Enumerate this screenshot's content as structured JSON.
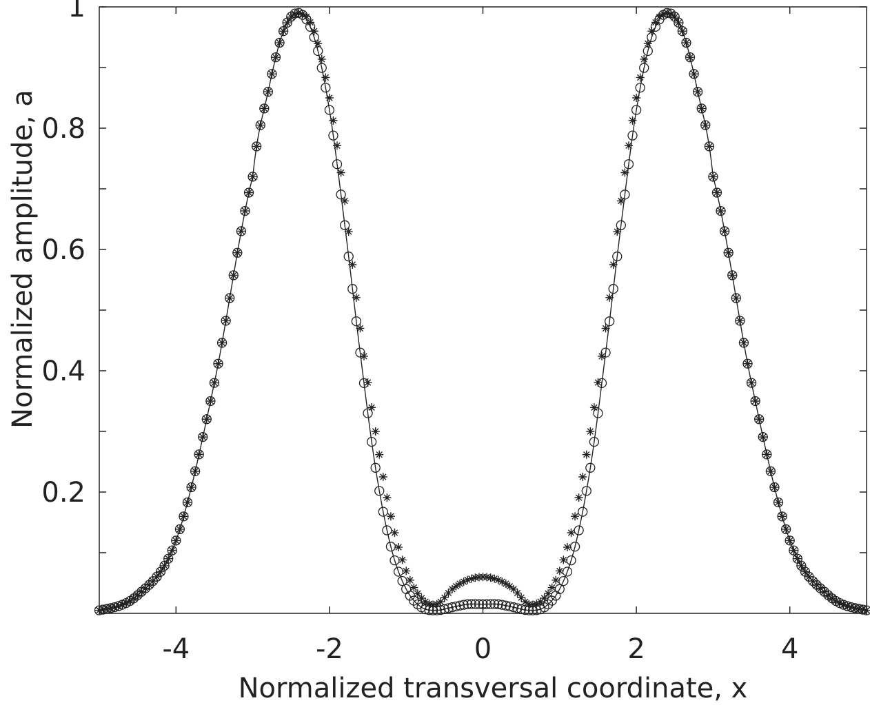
{
  "chart_data": {
    "type": "line",
    "xlabel": "Normalized transversal coordinate,  x",
    "ylabel": "Normalized amplitude,  a",
    "xlim": [
      -5,
      5
    ],
    "ylim": [
      0,
      1
    ],
    "xticks": [
      -4,
      -2,
      0,
      2,
      4
    ],
    "yticks_major": [
      0.2,
      0.4,
      0.6,
      0.8,
      1
    ],
    "yticks_minor": [
      0.1,
      0.3,
      0.5,
      0.7,
      0.9
    ],
    "xtick_labels": [
      "-4",
      "-2",
      "0",
      "2",
      "4"
    ],
    "ytick_labels": [
      "0.2",
      "0.4",
      "0.6",
      "0.8",
      "1"
    ],
    "grid": false,
    "legend": "none",
    "series": [
      {
        "marker": "line+circle",
        "x": [
          -5.0,
          -4.5,
          -4.0,
          -3.5,
          -3.0,
          -2.8,
          -2.6,
          -2.4,
          -2.2,
          -2.0,
          -1.8,
          -1.6,
          -1.4,
          -1.2,
          -1.0,
          -0.8,
          -0.6,
          -0.4,
          -0.2,
          0.0,
          0.2,
          0.4,
          0.6,
          0.8,
          1.0,
          1.2,
          1.4,
          1.6,
          1.8,
          2.0,
          2.2,
          2.4,
          2.6,
          2.8,
          3.0,
          3.5,
          4.0,
          4.5,
          5.0
        ],
        "values": [
          0.005,
          0.03,
          0.12,
          0.38,
          0.72,
          0.86,
          0.96,
          0.99,
          0.95,
          0.83,
          0.64,
          0.43,
          0.24,
          0.11,
          0.04,
          0.01,
          0.005,
          0.01,
          0.015,
          0.015,
          0.015,
          0.01,
          0.005,
          0.01,
          0.04,
          0.11,
          0.24,
          0.43,
          0.64,
          0.83,
          0.95,
          0.99,
          0.96,
          0.86,
          0.72,
          0.38,
          0.12,
          0.03,
          0.005
        ]
      },
      {
        "marker": "star",
        "x": [
          -5.0,
          -4.5,
          -4.0,
          -3.5,
          -3.0,
          -2.8,
          -2.6,
          -2.4,
          -2.2,
          -2.0,
          -1.8,
          -1.6,
          -1.4,
          -1.2,
          -1.0,
          -0.8,
          -0.6,
          -0.4,
          -0.2,
          0.0,
          0.2,
          0.4,
          0.6,
          0.8,
          1.0,
          1.2,
          1.4,
          1.6,
          1.8,
          2.0,
          2.2,
          2.4,
          2.6,
          2.8,
          3.0,
          3.5,
          4.0,
          4.5,
          5.0
        ],
        "values": [
          0.005,
          0.03,
          0.12,
          0.38,
          0.72,
          0.86,
          0.96,
          0.99,
          0.96,
          0.85,
          0.68,
          0.47,
          0.3,
          0.16,
          0.07,
          0.025,
          0.015,
          0.04,
          0.055,
          0.06,
          0.055,
          0.04,
          0.015,
          0.025,
          0.07,
          0.16,
          0.3,
          0.47,
          0.68,
          0.85,
          0.96,
          0.99,
          0.96,
          0.86,
          0.72,
          0.38,
          0.12,
          0.03,
          0.005
        ]
      }
    ]
  }
}
